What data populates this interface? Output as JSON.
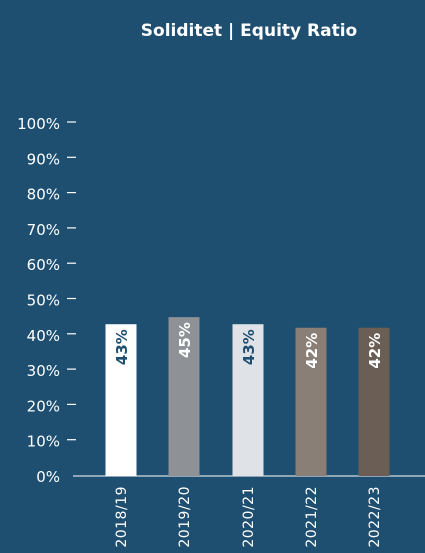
{
  "chart_data": {
    "type": "bar",
    "title": "Soliditet | Equity Ratio",
    "xlabel": "",
    "ylabel": "",
    "ylim": [
      0,
      100
    ],
    "yticks": [
      "0%",
      "10%",
      "20%",
      "30%",
      "40%",
      "50%",
      "60%",
      "70%",
      "80%",
      "90%",
      "100%"
    ],
    "categories": [
      "2018/19",
      "2019/20",
      "2020/21",
      "2021/22",
      "2022/23"
    ],
    "values": [
      43,
      45,
      43,
      42,
      42
    ],
    "value_labels": [
      "43%",
      "45%",
      "43%",
      "42%",
      "42%"
    ],
    "colors": {
      "background": "#1e4e70",
      "bars": [
        "#ffffff",
        "#8e9296",
        "#dfe3e7",
        "#8a7f77",
        "#6b5f55"
      ],
      "value_label_colors": [
        "#1e4e70",
        "#ffffff",
        "#1e4e70",
        "#ffffff",
        "#ffffff"
      ],
      "axis": "#ffffff"
    },
    "grid": false,
    "legend": "none"
  }
}
